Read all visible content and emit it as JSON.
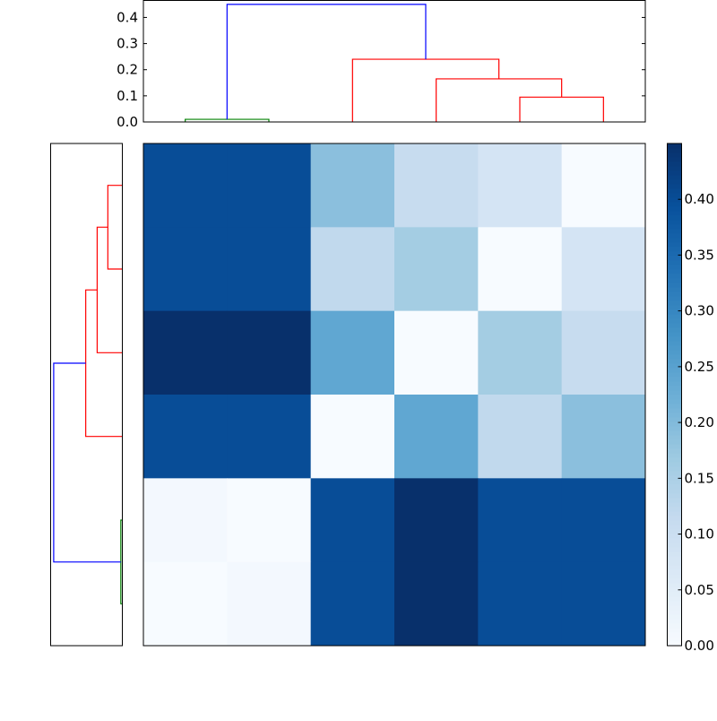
{
  "chart_data": {
    "type": "heatmap",
    "title": "",
    "colormap": "Blues",
    "colorbar": {
      "range": [
        0.0,
        0.45
      ],
      "tick_values": [
        0.0,
        0.05,
        0.1,
        0.15,
        0.2,
        0.25,
        0.3,
        0.35,
        0.4
      ],
      "tick_labels": [
        "0.00",
        "0.05",
        "0.10",
        "0.15",
        "0.20",
        "0.25",
        "0.30",
        "0.35",
        "0.40"
      ]
    },
    "matrix": [
      [
        0.4,
        0.4,
        0.19,
        0.11,
        0.08,
        0.0
      ],
      [
        0.4,
        0.4,
        0.12,
        0.16,
        0.0,
        0.08
      ],
      [
        0.45,
        0.45,
        0.24,
        0.0,
        0.16,
        0.11
      ],
      [
        0.4,
        0.4,
        0.0,
        0.24,
        0.12,
        0.19
      ],
      [
        0.01,
        0.0,
        0.4,
        0.45,
        0.4,
        0.4
      ],
      [
        0.0,
        0.01,
        0.4,
        0.45,
        0.4,
        0.4
      ]
    ],
    "top_dendrogram": {
      "orientation": "top",
      "ylim": [
        0.0,
        0.465
      ],
      "tick_values": [
        0.0,
        0.1,
        0.2,
        0.3,
        0.4
      ],
      "tick_labels": [
        "0.0",
        "0.1",
        "0.2",
        "0.3",
        "0.4"
      ],
      "links": [
        {
          "left": 5,
          "right": 15,
          "left_base": 0,
          "right_base": 0,
          "height": 0.01,
          "color": "#008000"
        },
        {
          "left": 45,
          "right": 55,
          "left_base": 0,
          "right_base": 0,
          "height": 0.095,
          "color": "#ff0000"
        },
        {
          "left": 35,
          "right": 50,
          "left_base": 0,
          "right_base": 0.095,
          "height": 0.165,
          "color": "#ff0000"
        },
        {
          "left": 25,
          "right": 42.5,
          "left_base": 0,
          "right_base": 0.165,
          "height": 0.24,
          "color": "#ff0000"
        },
        {
          "left": 10,
          "right": 33.75,
          "left_base": 0.01,
          "right_base": 0.24,
          "height": 0.45,
          "color": "#0000ff"
        }
      ]
    },
    "left_dendrogram": {
      "orientation": "left",
      "xlim": [
        0.47,
        0.0
      ],
      "links": [
        {
          "left": 5,
          "right": 15,
          "left_base": 0,
          "right_base": 0,
          "height": 0.095,
          "color": "#ff0000"
        },
        {
          "left": 10,
          "right": 25,
          "left_base": 0.095,
          "right_base": 0,
          "height": 0.165,
          "color": "#ff0000"
        },
        {
          "left": 17.5,
          "right": 35,
          "left_base": 0.165,
          "right_base": 0,
          "height": 0.24,
          "color": "#ff0000"
        },
        {
          "left": 45,
          "right": 55,
          "left_base": 0,
          "right_base": 0,
          "height": 0.01,
          "color": "#008000"
        },
        {
          "left": 26.25,
          "right": 50,
          "left_base": 0.24,
          "right_base": 0.01,
          "height": 0.45,
          "color": "#0000ff"
        }
      ]
    }
  }
}
